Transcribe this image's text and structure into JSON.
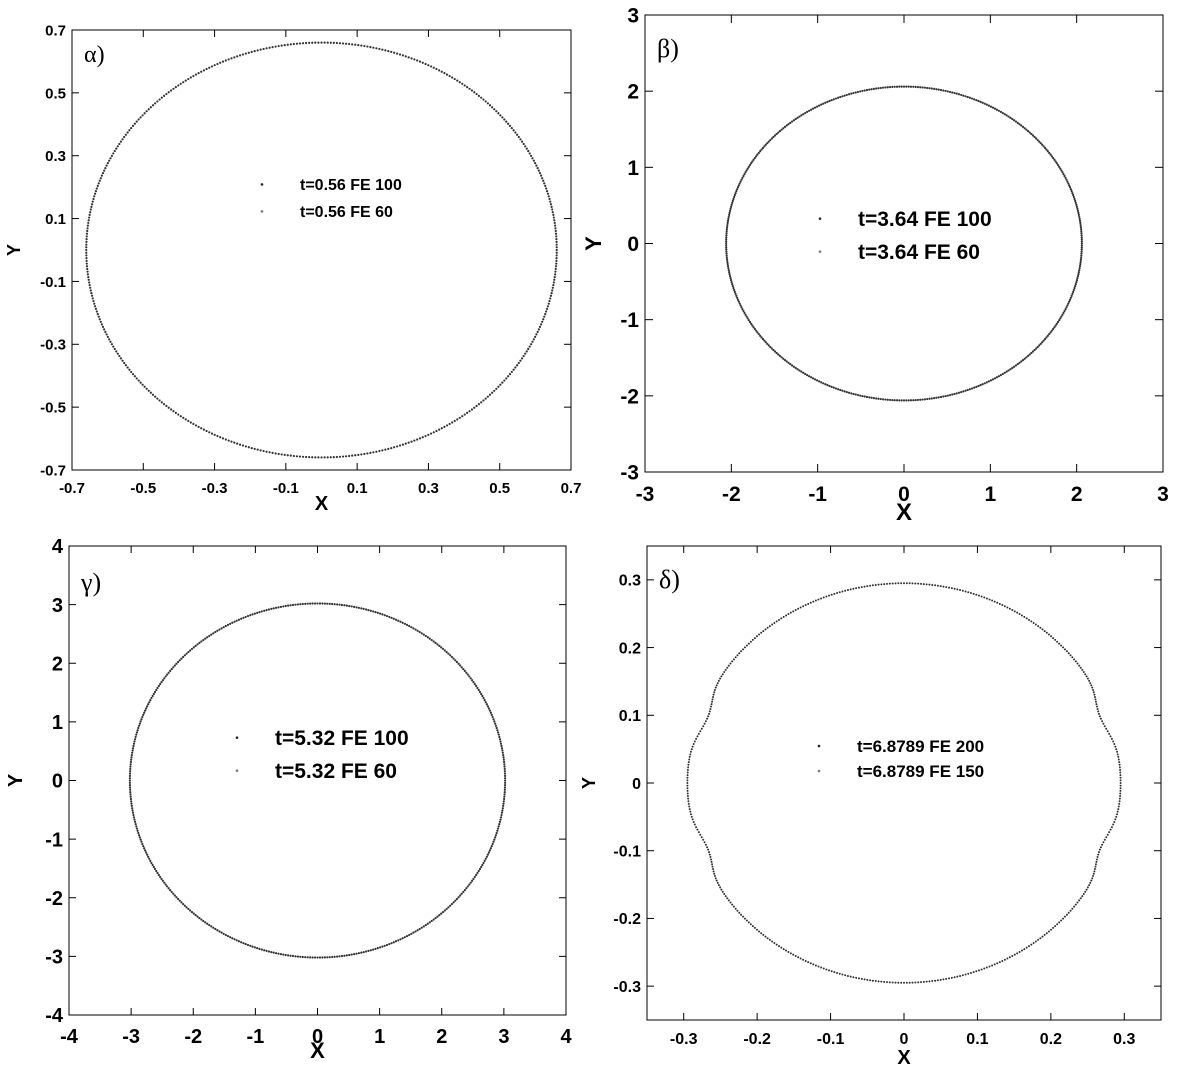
{
  "chart_data": [
    {
      "type": "scatter",
      "panel_label": "α)",
      "xlabel": "X",
      "ylabel": "Y",
      "xlim": [
        -0.7,
        0.7
      ],
      "ylim": [
        -0.7,
        0.7
      ],
      "xticks": [
        "-0.7",
        "-0.5",
        "-0.3",
        "-0.1",
        "0.1",
        "0.3",
        "0.5",
        "0.7"
      ],
      "yticks": [
        "-0.7",
        "-0.5",
        "-0.3",
        "-0.1",
        "0.1",
        "0.3",
        "0.5",
        "0.7"
      ],
      "legend": [
        "t=0.56 FE 100",
        "t=0.56 FE 60"
      ],
      "series": [
        {
          "name": "t=0.56 FE 100",
          "shape": "circle",
          "center": [
            0,
            0
          ],
          "radius": 0.66
        },
        {
          "name": "t=0.56 FE 60",
          "shape": "circle",
          "center": [
            0,
            0
          ],
          "radius": 0.66
        }
      ]
    },
    {
      "type": "scatter",
      "panel_label": "β)",
      "xlabel": "X",
      "ylabel": "Y",
      "xlim": [
        -3,
        3
      ],
      "ylim": [
        -3,
        3
      ],
      "xticks": [
        "-3",
        "-2",
        "-1",
        "0",
        "1",
        "2",
        "3"
      ],
      "yticks": [
        "-3",
        "-2",
        "-1",
        "0",
        "1",
        "2",
        "3"
      ],
      "legend": [
        "t=3.64 FE 100",
        "t=3.64 FE 60"
      ],
      "series": [
        {
          "name": "t=3.64 FE 100",
          "shape": "circle",
          "center": [
            0,
            0
          ],
          "radius": 2.06
        },
        {
          "name": "t=3.64 FE 60",
          "shape": "circle",
          "center": [
            0,
            0
          ],
          "radius": 2.06
        }
      ]
    },
    {
      "type": "scatter",
      "panel_label": "γ)",
      "xlabel": "X",
      "ylabel": "Y",
      "xlim": [
        -4,
        4
      ],
      "ylim": [
        -4,
        4
      ],
      "xticks": [
        "-4",
        "-3",
        "-2",
        "-1",
        "0",
        "1",
        "2",
        "3",
        "4"
      ],
      "yticks": [
        "-4",
        "-3",
        "-2",
        "-1",
        "0",
        "1",
        "2",
        "3",
        "4"
      ],
      "legend": [
        "t=5.32 FE 100",
        "t=5.32 FE 60"
      ],
      "series": [
        {
          "name": "t=5.32 FE 100",
          "shape": "circle",
          "center": [
            0,
            0
          ],
          "radius": 3.02
        },
        {
          "name": "t=5.32 FE 60",
          "shape": "circle",
          "center": [
            0,
            0
          ],
          "radius": 3.02
        }
      ]
    },
    {
      "type": "scatter",
      "panel_label": "δ)",
      "xlabel": "X",
      "ylabel": "Y",
      "xlim": [
        -0.35,
        0.35
      ],
      "ylim": [
        -0.35,
        0.35
      ],
      "xticks": [
        "-0.3",
        "-0.2",
        "-0.1",
        "0",
        "0.1",
        "0.2",
        "0.3"
      ],
      "yticks": [
        "-0.3",
        "-0.2",
        "-0.1",
        "0",
        "0.1",
        "0.2",
        "0.3"
      ],
      "legend": [
        "t=6.8789 FE 200",
        "t=6.8789 FE 150"
      ],
      "series": [
        {
          "name": "t=6.8789 FE 200",
          "shape": "circle",
          "center": [
            0,
            0
          ],
          "radius": 0.295,
          "bulge": {
            "amplitude": 0.012,
            "at_y": [
              -0.1,
              0.1
            ]
          }
        },
        {
          "name": "t=6.8789 FE 150",
          "shape": "circle",
          "center": [
            0,
            0
          ],
          "radius": 0.295,
          "bulge": {
            "amplitude": 0.012,
            "at_y": [
              -0.1,
              0.1
            ]
          }
        }
      ]
    }
  ]
}
